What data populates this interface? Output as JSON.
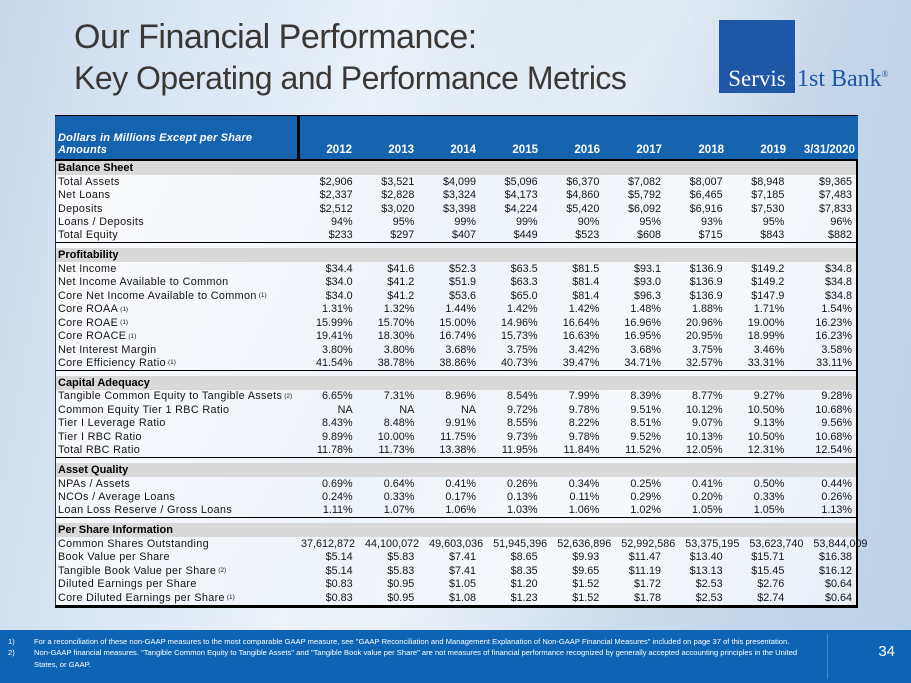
{
  "slide": {
    "title_line1": "Our Financial Performance:",
    "title_line2": "Key Operating and Performance Metrics",
    "page_number": "34"
  },
  "logo": {
    "box_text": "Servis",
    "suffix_text": "1st Bank",
    "registered": "®"
  },
  "colors": {
    "header_blue": "#1562af",
    "footer_blue": "#0d64b5",
    "logo_blue": "#1d57a5",
    "section_gray": "#d9d9d9",
    "title_text": "#3b3734"
  },
  "table": {
    "header_label": "Dollars in Millions Except per Share Amounts",
    "columns": [
      "2012",
      "2013",
      "2014",
      "2015",
      "2016",
      "2017",
      "2018",
      "2019",
      "3/31/2020"
    ],
    "sections": [
      {
        "title": "Balance Sheet",
        "rows": [
          {
            "label": "Total Assets",
            "sup": "",
            "values": [
              "$2,906",
              "$3,521",
              "$4,099",
              "$5,096",
              "$6,370",
              "$7,082",
              "$8,007",
              "$8,948",
              "$9,365"
            ]
          },
          {
            "label": "Net Loans",
            "sup": "",
            "values": [
              "$2,337",
              "$2,828",
              "$3,324",
              "$4,173",
              "$4,860",
              "$5,792",
              "$6,465",
              "$7,185",
              "$7,483"
            ]
          },
          {
            "label": "Deposits",
            "sup": "",
            "values": [
              "$2,512",
              "$3,020",
              "$3,398",
              "$4,224",
              "$5,420",
              "$6,092",
              "$6,916",
              "$7,530",
              "$7,833"
            ]
          },
          {
            "label": "Loans / Deposits",
            "sup": "",
            "values": [
              "94%",
              "95%",
              "99%",
              "99%",
              "90%",
              "95%",
              "93%",
              "95%",
              "96%"
            ]
          },
          {
            "label": "Total Equity",
            "sup": "",
            "values": [
              "$233",
              "$297",
              "$407",
              "$449",
              "$523",
              "$608",
              "$715",
              "$843",
              "$882"
            ]
          }
        ]
      },
      {
        "title": "Profitability",
        "rows": [
          {
            "label": "Net Income",
            "sup": "",
            "values": [
              "$34.4",
              "$41.6",
              "$52.3",
              "$63.5",
              "$81.5",
              "$93.1",
              "$136.9",
              "$149.2",
              "$34.8"
            ]
          },
          {
            "label": "Net Income Available to Common",
            "sup": "",
            "values": [
              "$34.0",
              "$41.2",
              "$51.9",
              "$63.3",
              "$81.4",
              "$93.0",
              "$136.9",
              "$149.2",
              "$34.8"
            ]
          },
          {
            "label": "Core Net Income Available to Common",
            "sup": "(1)",
            "values": [
              "$34.0",
              "$41.2",
              "$53.6",
              "$65.0",
              "$81.4",
              "$96.3",
              "$136.9",
              "$147.9",
              "$34.8"
            ]
          },
          {
            "label": "Core ROAA",
            "sup": "(1)",
            "values": [
              "1.31%",
              "1.32%",
              "1.44%",
              "1.42%",
              "1.42%",
              "1.48%",
              "1.88%",
              "1.71%",
              "1.54%"
            ]
          },
          {
            "label": "Core ROAE",
            "sup": "(1)",
            "values": [
              "15.99%",
              "15.70%",
              "15.00%",
              "14.96%",
              "16.64%",
              "16.96%",
              "20.96%",
              "19.00%",
              "16.23%"
            ]
          },
          {
            "label": "Core ROACE",
            "sup": "(1)",
            "values": [
              "19.41%",
              "18.30%",
              "16.74%",
              "15.73%",
              "16.63%",
              "16.95%",
              "20.95%",
              "18.99%",
              "16.23%"
            ]
          },
          {
            "label": "Net Interest Margin",
            "sup": "",
            "values": [
              "3.80%",
              "3.80%",
              "3.68%",
              "3.75%",
              "3.42%",
              "3.68%",
              "3.75%",
              "3.46%",
              "3.58%"
            ]
          },
          {
            "label": "Core Efficiency Ratio",
            "sup": "(1)",
            "values": [
              "41.54%",
              "38.78%",
              "38.86%",
              "40.73%",
              "39.47%",
              "34.71%",
              "32.57%",
              "33.31%",
              "33.11%"
            ]
          }
        ]
      },
      {
        "title": "Capital Adequacy",
        "rows": [
          {
            "label": "Tangible Common Equity to Tangible Assets",
            "sup": "(2)",
            "values": [
              "6.65%",
              "7.31%",
              "8.96%",
              "8.54%",
              "7.99%",
              "8.39%",
              "8.77%",
              "9.27%",
              "9.28%"
            ]
          },
          {
            "label": "Common Equity Tier 1 RBC Ratio",
            "sup": "",
            "values": [
              "NA",
              "NA",
              "NA",
              "9.72%",
              "9.78%",
              "9.51%",
              "10.12%",
              "10.50%",
              "10.68%"
            ]
          },
          {
            "label": "Tier I Leverage Ratio",
            "sup": "",
            "values": [
              "8.43%",
              "8.48%",
              "9.91%",
              "8.55%",
              "8.22%",
              "8.51%",
              "9.07%",
              "9.13%",
              "9.56%"
            ]
          },
          {
            "label": "Tier I RBC Ratio",
            "sup": "",
            "values": [
              "9.89%",
              "10.00%",
              "11.75%",
              "9.73%",
              "9.78%",
              "9.52%",
              "10.13%",
              "10.50%",
              "10.68%"
            ]
          },
          {
            "label": "Total RBC Ratio",
            "sup": "",
            "values": [
              "11.78%",
              "11.73%",
              "13.38%",
              "11.95%",
              "11.84%",
              "11.52%",
              "12.05%",
              "12.31%",
              "12.54%"
            ]
          }
        ]
      },
      {
        "title": "Asset Quality",
        "rows": [
          {
            "label": "NPAs / Assets",
            "sup": "",
            "values": [
              "0.69%",
              "0.64%",
              "0.41%",
              "0.26%",
              "0.34%",
              "0.25%",
              "0.41%",
              "0.50%",
              "0.44%"
            ]
          },
          {
            "label": "NCOs / Average Loans",
            "sup": "",
            "values": [
              "0.24%",
              "0.33%",
              "0.17%",
              "0.13%",
              "0.11%",
              "0.29%",
              "0.20%",
              "0.33%",
              "0.26%"
            ]
          },
          {
            "label": "Loan Loss Reserve / Gross Loans",
            "sup": "",
            "values": [
              "1.11%",
              "1.07%",
              "1.06%",
              "1.03%",
              "1.06%",
              "1.02%",
              "1.05%",
              "1.05%",
              "1.13%"
            ]
          }
        ]
      },
      {
        "title": "Per Share Information",
        "rows": [
          {
            "label": "Common Shares Outstanding",
            "sup": "",
            "values": [
              "37,612,872",
              "44,100,072",
              "49,603,036",
              "51,945,396",
              "52,636,896",
              "52,992,586",
              "53,375,195",
              "53,623,740",
              "53,844,009"
            ]
          },
          {
            "label": "Book Value per Share",
            "sup": "",
            "values": [
              "$5.14",
              "$5.83",
              "$7.41",
              "$8.65",
              "$9.93",
              "$11.47",
              "$13.40",
              "$15.71",
              "$16.38"
            ]
          },
          {
            "label": "Tangible Book Value per Share",
            "sup": "(2)",
            "values": [
              "$5.14",
              "$5.83",
              "$7.41",
              "$8.35",
              "$9.65",
              "$11.19",
              "$13.13",
              "$15.45",
              "$16.12"
            ]
          },
          {
            "label": "Diluted Earnings per Share",
            "sup": "",
            "values": [
              "$0.83",
              "$0.95",
              "$1.05",
              "$1.20",
              "$1.52",
              "$1.72",
              "$2.53",
              "$2.76",
              "$0.64"
            ]
          },
          {
            "label": "Core Diluted Earnings per Share",
            "sup": "(1)",
            "values": [
              "$0.83",
              "$0.95",
              "$1.08",
              "$1.23",
              "$1.52",
              "$1.78",
              "$2.53",
              "$2.74",
              "$0.64"
            ]
          }
        ]
      }
    ]
  },
  "footnotes": [
    {
      "num": "1)",
      "text": "For a reconciliation of these non-GAAP measures to the most comparable GAAP measure, see \"GAAP Reconciliation and Management Explanation of Non-GAAP Financial Measures\" included on page 37 of this presentation."
    },
    {
      "num": "2)",
      "text": "Non-GAAP financial measures. \"Tangible Common Equity to Tangible Assets\" and \"Tangible Book value per Share\" are not measures of financial performance recognized by generally accepted accounting principles in the United States, or GAAP."
    }
  ]
}
